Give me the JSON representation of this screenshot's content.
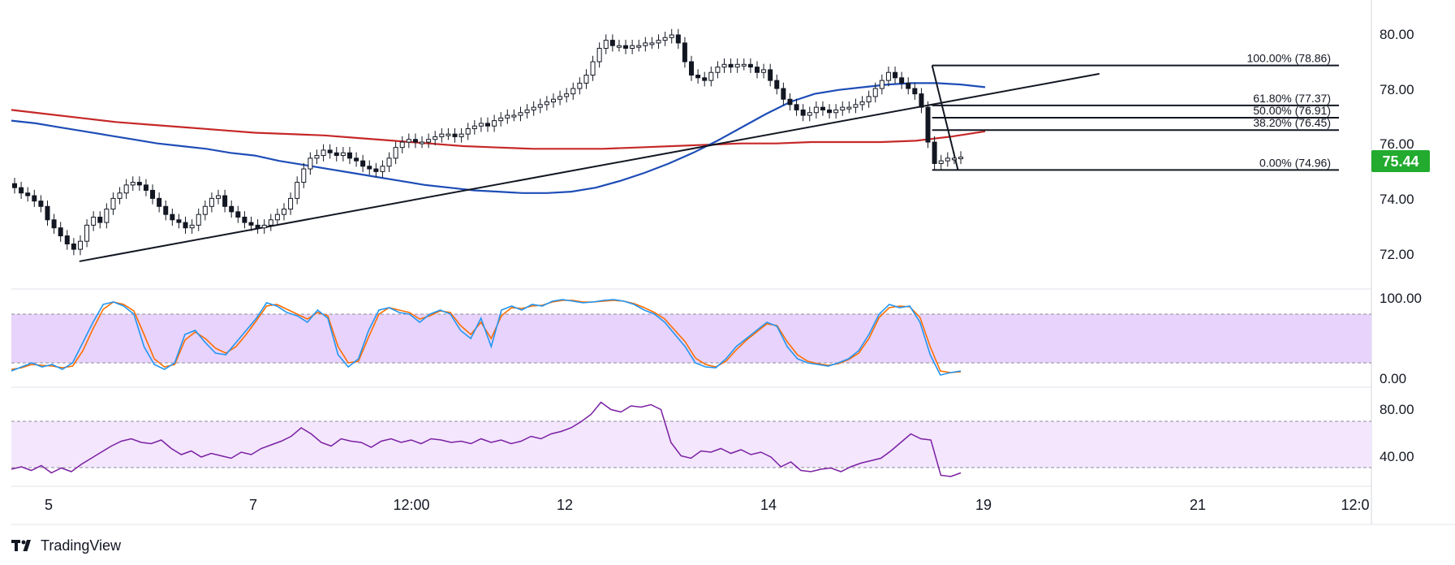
{
  "brand": {
    "name": "TradingView",
    "icon": "tradingview-logo-icon"
  },
  "colors": {
    "up": "#089981",
    "down": "#f23645",
    "candle": "#131722",
    "ma_short": "#1e4db7",
    "ma_long": "#c62828",
    "stoch_k": "#2196f3",
    "stoch_d": "#ff6d00",
    "rsi": "#7b1fa2",
    "band_fill_stoch": "#e7d3fb",
    "band_fill_rsi": "#f3e6fd",
    "price_badge": "#22ab2e",
    "grid": "#e0e3eb"
  },
  "price_panel": {
    "yticks": [
      "80.00",
      "78.00",
      "76.00",
      "74.00",
      "72.00"
    ],
    "current_price": "75.44"
  },
  "stoch_panel": {
    "yticks": [
      "100.00",
      "0.00"
    ]
  },
  "rsi_panel": {
    "yticks": [
      "80.00",
      "40.00"
    ]
  },
  "time_axis": {
    "labels": [
      "5",
      "7",
      "12:00",
      "12",
      "14",
      "19",
      "21",
      "12:0"
    ]
  },
  "fibonacci": {
    "levels": [
      {
        "label": "100.00% (78.86)",
        "price": 78.86
      },
      {
        "label": "61.80% (77.37)",
        "price": 77.37
      },
      {
        "label": "50.00% (76.91)",
        "price": 76.91
      },
      {
        "label": "38.20% (76.45)",
        "price": 76.45
      },
      {
        "label": "0.00% (74.96)",
        "price": 74.96
      }
    ]
  },
  "chart_data": {
    "type": "candlestick",
    "price_range": [
      70.7,
      81.0
    ],
    "x_ticks": [
      "5",
      "7",
      "12:00",
      "12",
      "14",
      "19",
      "21",
      "12:0"
    ],
    "closes": [
      74.3,
      74.1,
      74.0,
      73.8,
      73.6,
      73.1,
      72.8,
      72.5,
      72.2,
      72.0,
      72.3,
      72.9,
      73.2,
      73.0,
      73.5,
      73.9,
      74.1,
      74.4,
      74.5,
      74.4,
      74.2,
      73.9,
      73.6,
      73.3,
      73.1,
      73.0,
      72.8,
      72.9,
      73.3,
      73.6,
      73.9,
      74.0,
      73.6,
      73.4,
      73.2,
      73.0,
      72.9,
      72.8,
      72.9,
      73.1,
      73.3,
      73.5,
      73.9,
      74.5,
      75.0,
      75.4,
      75.5,
      75.7,
      75.6,
      75.5,
      75.6,
      75.4,
      75.3,
      75.1,
      75.0,
      74.9,
      75.1,
      75.4,
      75.8,
      76.0,
      76.1,
      76.0,
      76.0,
      76.1,
      76.2,
      76.3,
      76.3,
      76.2,
      76.3,
      76.5,
      76.6,
      76.7,
      76.6,
      76.8,
      76.9,
      77.0,
      77.0,
      77.1,
      77.2,
      77.3,
      77.4,
      77.5,
      77.6,
      77.7,
      77.8,
      78.0,
      78.2,
      78.5,
      79.0,
      79.5,
      79.8,
      79.6,
      79.6,
      79.5,
      79.6,
      79.6,
      79.7,
      79.7,
      79.8,
      79.9,
      80.0,
      79.7,
      79.0,
      78.5,
      78.4,
      78.3,
      78.6,
      78.8,
      78.9,
      78.8,
      78.9,
      78.9,
      78.8,
      78.6,
      78.7,
      78.3,
      78.0,
      77.6,
      77.4,
      77.2,
      77.0,
      77.1,
      77.3,
      77.2,
      77.1,
      77.2,
      77.3,
      77.3,
      77.4,
      77.5,
      77.7,
      78.0,
      78.3,
      78.6,
      78.4,
      78.2,
      78.0,
      77.8,
      77.3,
      76.0,
      75.2,
      75.3,
      75.4,
      75.4,
      75.44
    ],
    "ma_short": [
      76.8,
      76.7,
      76.55,
      76.4,
      76.25,
      76.1,
      75.95,
      75.85,
      75.75,
      75.6,
      75.5,
      75.3,
      75.15,
      75.0,
      74.85,
      74.7,
      74.55,
      74.4,
      74.3,
      74.2,
      74.15,
      74.1,
      74.1,
      74.15,
      74.3,
      74.55,
      74.85,
      75.2,
      75.6,
      76.05,
      76.55,
      77.05,
      77.5,
      77.8,
      77.95,
      78.05,
      78.15,
      78.2,
      78.2,
      78.15,
      78.05
    ],
    "ma_long": [
      77.2,
      77.05,
      76.9,
      76.75,
      76.65,
      76.55,
      76.45,
      76.35,
      76.3,
      76.25,
      76.15,
      76.05,
      75.95,
      75.85,
      75.8,
      75.75,
      75.75,
      75.75,
      75.8,
      75.85,
      75.9,
      75.95,
      75.95,
      76.0,
      76.0,
      76.0,
      76.05,
      76.2,
      76.4
    ],
    "trendlines": [
      {
        "from": [
          0.05,
          71.55
        ],
        "to": [
          0.8,
          78.55
        ]
      },
      {
        "from": [
          0.677,
          78.86
        ],
        "to": [
          0.696,
          74.96
        ]
      }
    ],
    "stochastic": {
      "range": [
        0,
        100
      ],
      "bands": [
        20,
        80
      ],
      "k": [
        10,
        15,
        20,
        15,
        18,
        12,
        20,
        45,
        70,
        92,
        95,
        90,
        80,
        40,
        18,
        12,
        20,
        55,
        60,
        45,
        32,
        30,
        45,
        60,
        75,
        94,
        90,
        82,
        78,
        70,
        85,
        75,
        30,
        15,
        25,
        60,
        85,
        88,
        82,
        80,
        70,
        80,
        85,
        80,
        60,
        50,
        75,
        40,
        85,
        90,
        85,
        92,
        90,
        96,
        98,
        96,
        94,
        95,
        97,
        98,
        96,
        92,
        85,
        80,
        70,
        55,
        40,
        20,
        15,
        14,
        25,
        40,
        50,
        60,
        70,
        65,
        40,
        25,
        20,
        18,
        16,
        20,
        25,
        35,
        55,
        80,
        92,
        88,
        90,
        70,
        30,
        5,
        8,
        10
      ],
      "d": [
        12,
        14,
        18,
        17,
        16,
        14,
        16,
        35,
        62,
        86,
        95,
        92,
        84,
        55,
        25,
        15,
        18,
        48,
        58,
        50,
        38,
        32,
        40,
        55,
        72,
        90,
        92,
        86,
        80,
        74,
        82,
        78,
        40,
        20,
        22,
        52,
        80,
        88,
        85,
        82,
        74,
        78,
        84,
        82,
        66,
        55,
        70,
        50,
        78,
        88,
        87,
        90,
        91,
        95,
        97,
        97,
        95,
        95,
        96,
        97,
        96,
        93,
        88,
        82,
        74,
        60,
        46,
        26,
        18,
        15,
        22,
        36,
        48,
        58,
        68,
        66,
        46,
        30,
        22,
        19,
        17,
        19,
        24,
        32,
        50,
        76,
        88,
        90,
        89,
        76,
        40,
        10,
        8,
        9
      ]
    },
    "rsi": {
      "range": [
        25,
        95
      ],
      "bands": [
        30,
        70
      ],
      "values": [
        33,
        35,
        32,
        36,
        30,
        34,
        31,
        37,
        42,
        47,
        52,
        56,
        58,
        55,
        54,
        57,
        50,
        45,
        48,
        43,
        46,
        44,
        42,
        47,
        45,
        50,
        53,
        56,
        60,
        67,
        62,
        55,
        52,
        58,
        56,
        55,
        51,
        56,
        58,
        55,
        57,
        54,
        58,
        57,
        55,
        56,
        54,
        58,
        55,
        57,
        54,
        56,
        60,
        58,
        62,
        64,
        67,
        72,
        78,
        88,
        82,
        80,
        85,
        84,
        86,
        82,
        55,
        44,
        42,
        48,
        47,
        50,
        46,
        49,
        45,
        47,
        43,
        35,
        39,
        32,
        31,
        33,
        34,
        31,
        35,
        38,
        40,
        42,
        48,
        55,
        62,
        58,
        57,
        28,
        27,
        30
      ]
    }
  }
}
